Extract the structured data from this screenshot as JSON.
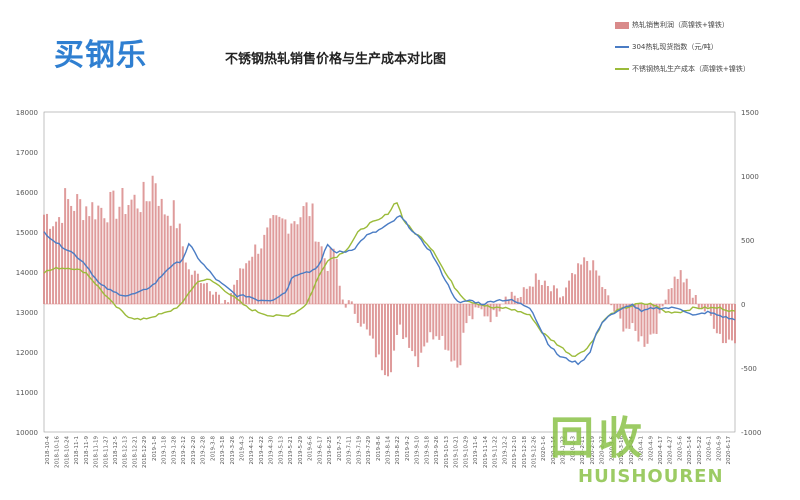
{
  "logo": "买钢乐",
  "watermark": {
    "cn": "回收",
    "en": "HUISHOUREN"
  },
  "chart_data": {
    "type": "bar+line",
    "title": "不锈钢热轧销售价格与生产成本对比图",
    "legend": [
      "热轧销售利润（高镍铁+镍铁）",
      "304热轧现货指数（元/吨）",
      "不锈钢热轧生产成本（高镍铁+镍铁）"
    ],
    "legend_position": "top-right",
    "left_axis": {
      "ticks": [
        10000,
        11000,
        12000,
        13000,
        14000,
        15000,
        16000,
        17000,
        18000
      ],
      "range": [
        10000,
        18000
      ]
    },
    "right_axis": {
      "ticks": [
        -1000,
        -500,
        0,
        500,
        1000,
        1500
      ],
      "range": [
        -1000,
        1500
      ]
    },
    "x_ticks": [
      "2018-10-4",
      "2018-10-16",
      "2018-10-24",
      "2018-11-1",
      "2018-11-9",
      "2018-11-19",
      "2018-11-27",
      "2018-12-5",
      "2018-12-13",
      "2018-12-21",
      "2018-12-29",
      "2019-1-8",
      "2019-1-18",
      "2019-1-28",
      "2019-2-12",
      "2019-2-20",
      "2019-2-28",
      "2019-3-8",
      "2019-3-18",
      "2019-3-26",
      "2019-4-3",
      "2019-4-12",
      "2019-4-22",
      "2019-4-30",
      "2019-5-13",
      "2019-5-21",
      "2019-5-29",
      "2019-6-6",
      "2019-6-17",
      "2019-6-25",
      "2019-7-3",
      "2019-7-11",
      "2019-7-19",
      "2019-7-29",
      "2019-8-6",
      "2019-8-14",
      "2019-8-22",
      "2019-9-2",
      "2019-9-10",
      "2019-9-18",
      "2019-9-26",
      "2019-10-13",
      "2019-10-21",
      "2019-10-29",
      "2019-11-6",
      "2019-11-14",
      "2019-11-22",
      "2019-12-2",
      "2019-12-10",
      "2019-12-18",
      "2019-12-26",
      "2020-1-6",
      "2020-1-14",
      "2020-1-22",
      "2020-2-3",
      "2020-2-11",
      "2020-2-19",
      "2020-2-27",
      "2020-3-6",
      "2020-3-16",
      "2020-3-24",
      "2020-4-1",
      "2020-4-9",
      "2020-4-17",
      "2020-4-27",
      "2020-5-6",
      "2020-5-14",
      "2020-5-22",
      "2020-6-1",
      "2020-6-9",
      "2020-6-17"
    ],
    "profit_keypoints": [
      [
        0,
        700
      ],
      [
        0.04,
        650
      ],
      [
        0.06,
        800
      ],
      [
        0.1,
        780
      ],
      [
        0.14,
        750
      ],
      [
        0.2,
        760
      ],
      [
        0.25,
        800
      ],
      [
        0.3,
        820
      ],
      [
        0.32,
        1050
      ],
      [
        0.34,
        750
      ],
      [
        0.38,
        700
      ],
      [
        0.42,
        250
      ],
      [
        0.46,
        200
      ],
      [
        0.5,
        100
      ],
      [
        0.52,
        -50
      ],
      [
        0.55,
        150
      ],
      [
        0.6,
        400
      ],
      [
        0.64,
        500
      ],
      [
        0.66,
        600
      ],
      [
        0.7,
        650
      ],
      [
        0.74,
        700
      ],
      [
        0.77,
        750
      ],
      [
        0.79,
        550
      ],
      [
        0.82,
        300
      ],
      [
        0.84,
        450
      ],
      [
        0.86,
        50
      ],
      [
        0.9,
        -50
      ],
      [
        0.92,
        -150
      ],
      [
        0.95,
        -300
      ],
      [
        0.97,
        -450
      ],
      [
        1.0,
        -500
      ],
      [
        1.03,
        -200
      ],
      [
        1.06,
        -300
      ],
      [
        1.08,
        -450
      ],
      [
        1.1,
        -300
      ],
      [
        1.14,
        -200
      ],
      [
        1.17,
        -350
      ],
      [
        1.2,
        -500
      ],
      [
        1.22,
        -150
      ],
      [
        1.26,
        -50
      ],
      [
        1.3,
        -100
      ],
      [
        1.34,
        100
      ],
      [
        1.38,
        50
      ],
      [
        1.42,
        200
      ],
      [
        1.44,
        150
      ],
      [
        1.47,
        100
      ],
      [
        1.5,
        50
      ],
      [
        1.53,
        200
      ],
      [
        1.57,
        350
      ],
      [
        1.6,
        250
      ],
      [
        1.63,
        50
      ],
      [
        1.67,
        -150
      ],
      [
        1.7,
        -200
      ],
      [
        1.74,
        -300
      ],
      [
        1.78,
        -150
      ],
      [
        1.8,
        100
      ],
      [
        1.84,
        250
      ],
      [
        1.88,
        50
      ],
      [
        1.93,
        -100
      ],
      [
        1.97,
        -300
      ],
      [
        2.0,
        -250
      ]
    ],
    "price_keypoints": [
      [
        0,
        15000
      ],
      [
        0.04,
        14700
      ],
      [
        0.08,
        14500
      ],
      [
        0.12,
        14200
      ],
      [
        0.16,
        13700
      ],
      [
        0.2,
        13500
      ],
      [
        0.24,
        13400
      ],
      [
        0.28,
        13500
      ],
      [
        0.32,
        13700
      ],
      [
        0.36,
        14100
      ],
      [
        0.4,
        14300
      ],
      [
        0.42,
        14700
      ],
      [
        0.45,
        14300
      ],
      [
        0.48,
        14000
      ],
      [
        0.5,
        13800
      ],
      [
        0.53,
        13600
      ],
      [
        0.56,
        13400
      ],
      [
        0.59,
        13400
      ],
      [
        0.62,
        13300
      ],
      [
        0.66,
        13300
      ],
      [
        0.7,
        13500
      ],
      [
        0.72,
        13900
      ],
      [
        0.75,
        14000
      ],
      [
        0.77,
        14000
      ],
      [
        0.8,
        14200
      ],
      [
        0.82,
        14700
      ],
      [
        0.84,
        14500
      ],
      [
        0.87,
        14500
      ],
      [
        0.9,
        14600
      ],
      [
        0.93,
        14900
      ],
      [
        0.96,
        15000
      ],
      [
        1.0,
        15200
      ],
      [
        1.03,
        15400
      ],
      [
        1.06,
        15100
      ],
      [
        1.09,
        14800
      ],
      [
        1.12,
        14500
      ],
      [
        1.15,
        14000
      ],
      [
        1.18,
        13500
      ],
      [
        1.2,
        13200
      ],
      [
        1.23,
        13300
      ],
      [
        1.27,
        13200
      ],
      [
        1.31,
        13300
      ],
      [
        1.35,
        13300
      ],
      [
        1.38,
        13200
      ],
      [
        1.41,
        13100
      ],
      [
        1.43,
        12700
      ],
      [
        1.46,
        12200
      ],
      [
        1.49,
        11900
      ],
      [
        1.52,
        11800
      ],
      [
        1.55,
        11700
      ],
      [
        1.58,
        12000
      ],
      [
        1.6,
        12500
      ],
      [
        1.63,
        12900
      ],
      [
        1.66,
        13000
      ],
      [
        1.7,
        13200
      ],
      [
        1.73,
        13000
      ],
      [
        1.76,
        13100
      ],
      [
        1.8,
        13100
      ],
      [
        1.84,
        13100
      ],
      [
        1.88,
        12900
      ],
      [
        1.92,
        13000
      ],
      [
        1.96,
        12900
      ],
      [
        2.0,
        12800
      ]
    ],
    "cost_keypoints": [
      [
        0,
        14000
      ],
      [
        0.04,
        14100
      ],
      [
        0.08,
        14100
      ],
      [
        0.12,
        14000
      ],
      [
        0.16,
        13600
      ],
      [
        0.2,
        13200
      ],
      [
        0.24,
        12900
      ],
      [
        0.28,
        12800
      ],
      [
        0.32,
        12900
      ],
      [
        0.36,
        13000
      ],
      [
        0.4,
        13200
      ],
      [
        0.42,
        13500
      ],
      [
        0.45,
        13800
      ],
      [
        0.48,
        13800
      ],
      [
        0.5,
        13700
      ],
      [
        0.53,
        13500
      ],
      [
        0.56,
        13300
      ],
      [
        0.59,
        13100
      ],
      [
        0.62,
        13000
      ],
      [
        0.66,
        12900
      ],
      [
        0.7,
        12900
      ],
      [
        0.73,
        13000
      ],
      [
        0.76,
        13200
      ],
      [
        0.79,
        13800
      ],
      [
        0.82,
        14300
      ],
      [
        0.85,
        14400
      ],
      [
        0.88,
        14600
      ],
      [
        0.91,
        15000
      ],
      [
        0.94,
        15200
      ],
      [
        0.97,
        15300
      ],
      [
        1.0,
        15500
      ],
      [
        1.02,
        15800
      ],
      [
        1.04,
        15300
      ],
      [
        1.07,
        15000
      ],
      [
        1.1,
        14800
      ],
      [
        1.13,
        14500
      ],
      [
        1.16,
        14000
      ],
      [
        1.19,
        13600
      ],
      [
        1.22,
        13300
      ],
      [
        1.26,
        13200
      ],
      [
        1.3,
        13100
      ],
      [
        1.34,
        13100
      ],
      [
        1.38,
        13000
      ],
      [
        1.41,
        12900
      ],
      [
        1.44,
        12500
      ],
      [
        1.47,
        12300
      ],
      [
        1.5,
        12100
      ],
      [
        1.53,
        11900
      ],
      [
        1.56,
        12000
      ],
      [
        1.59,
        12300
      ],
      [
        1.62,
        12800
      ],
      [
        1.65,
        13000
      ],
      [
        1.68,
        13100
      ],
      [
        1.72,
        13200
      ],
      [
        1.76,
        13200
      ],
      [
        1.8,
        13000
      ],
      [
        1.84,
        13000
      ],
      [
        1.88,
        13100
      ],
      [
        1.92,
        13100
      ],
      [
        1.96,
        13100
      ],
      [
        2.0,
        13000
      ]
    ],
    "colors": {
      "profit": "#d98a8a",
      "price": "#4a7cc4",
      "cost": "#9bbb3a",
      "grid": "#e6e6e6",
      "axis": "#999999"
    }
  }
}
